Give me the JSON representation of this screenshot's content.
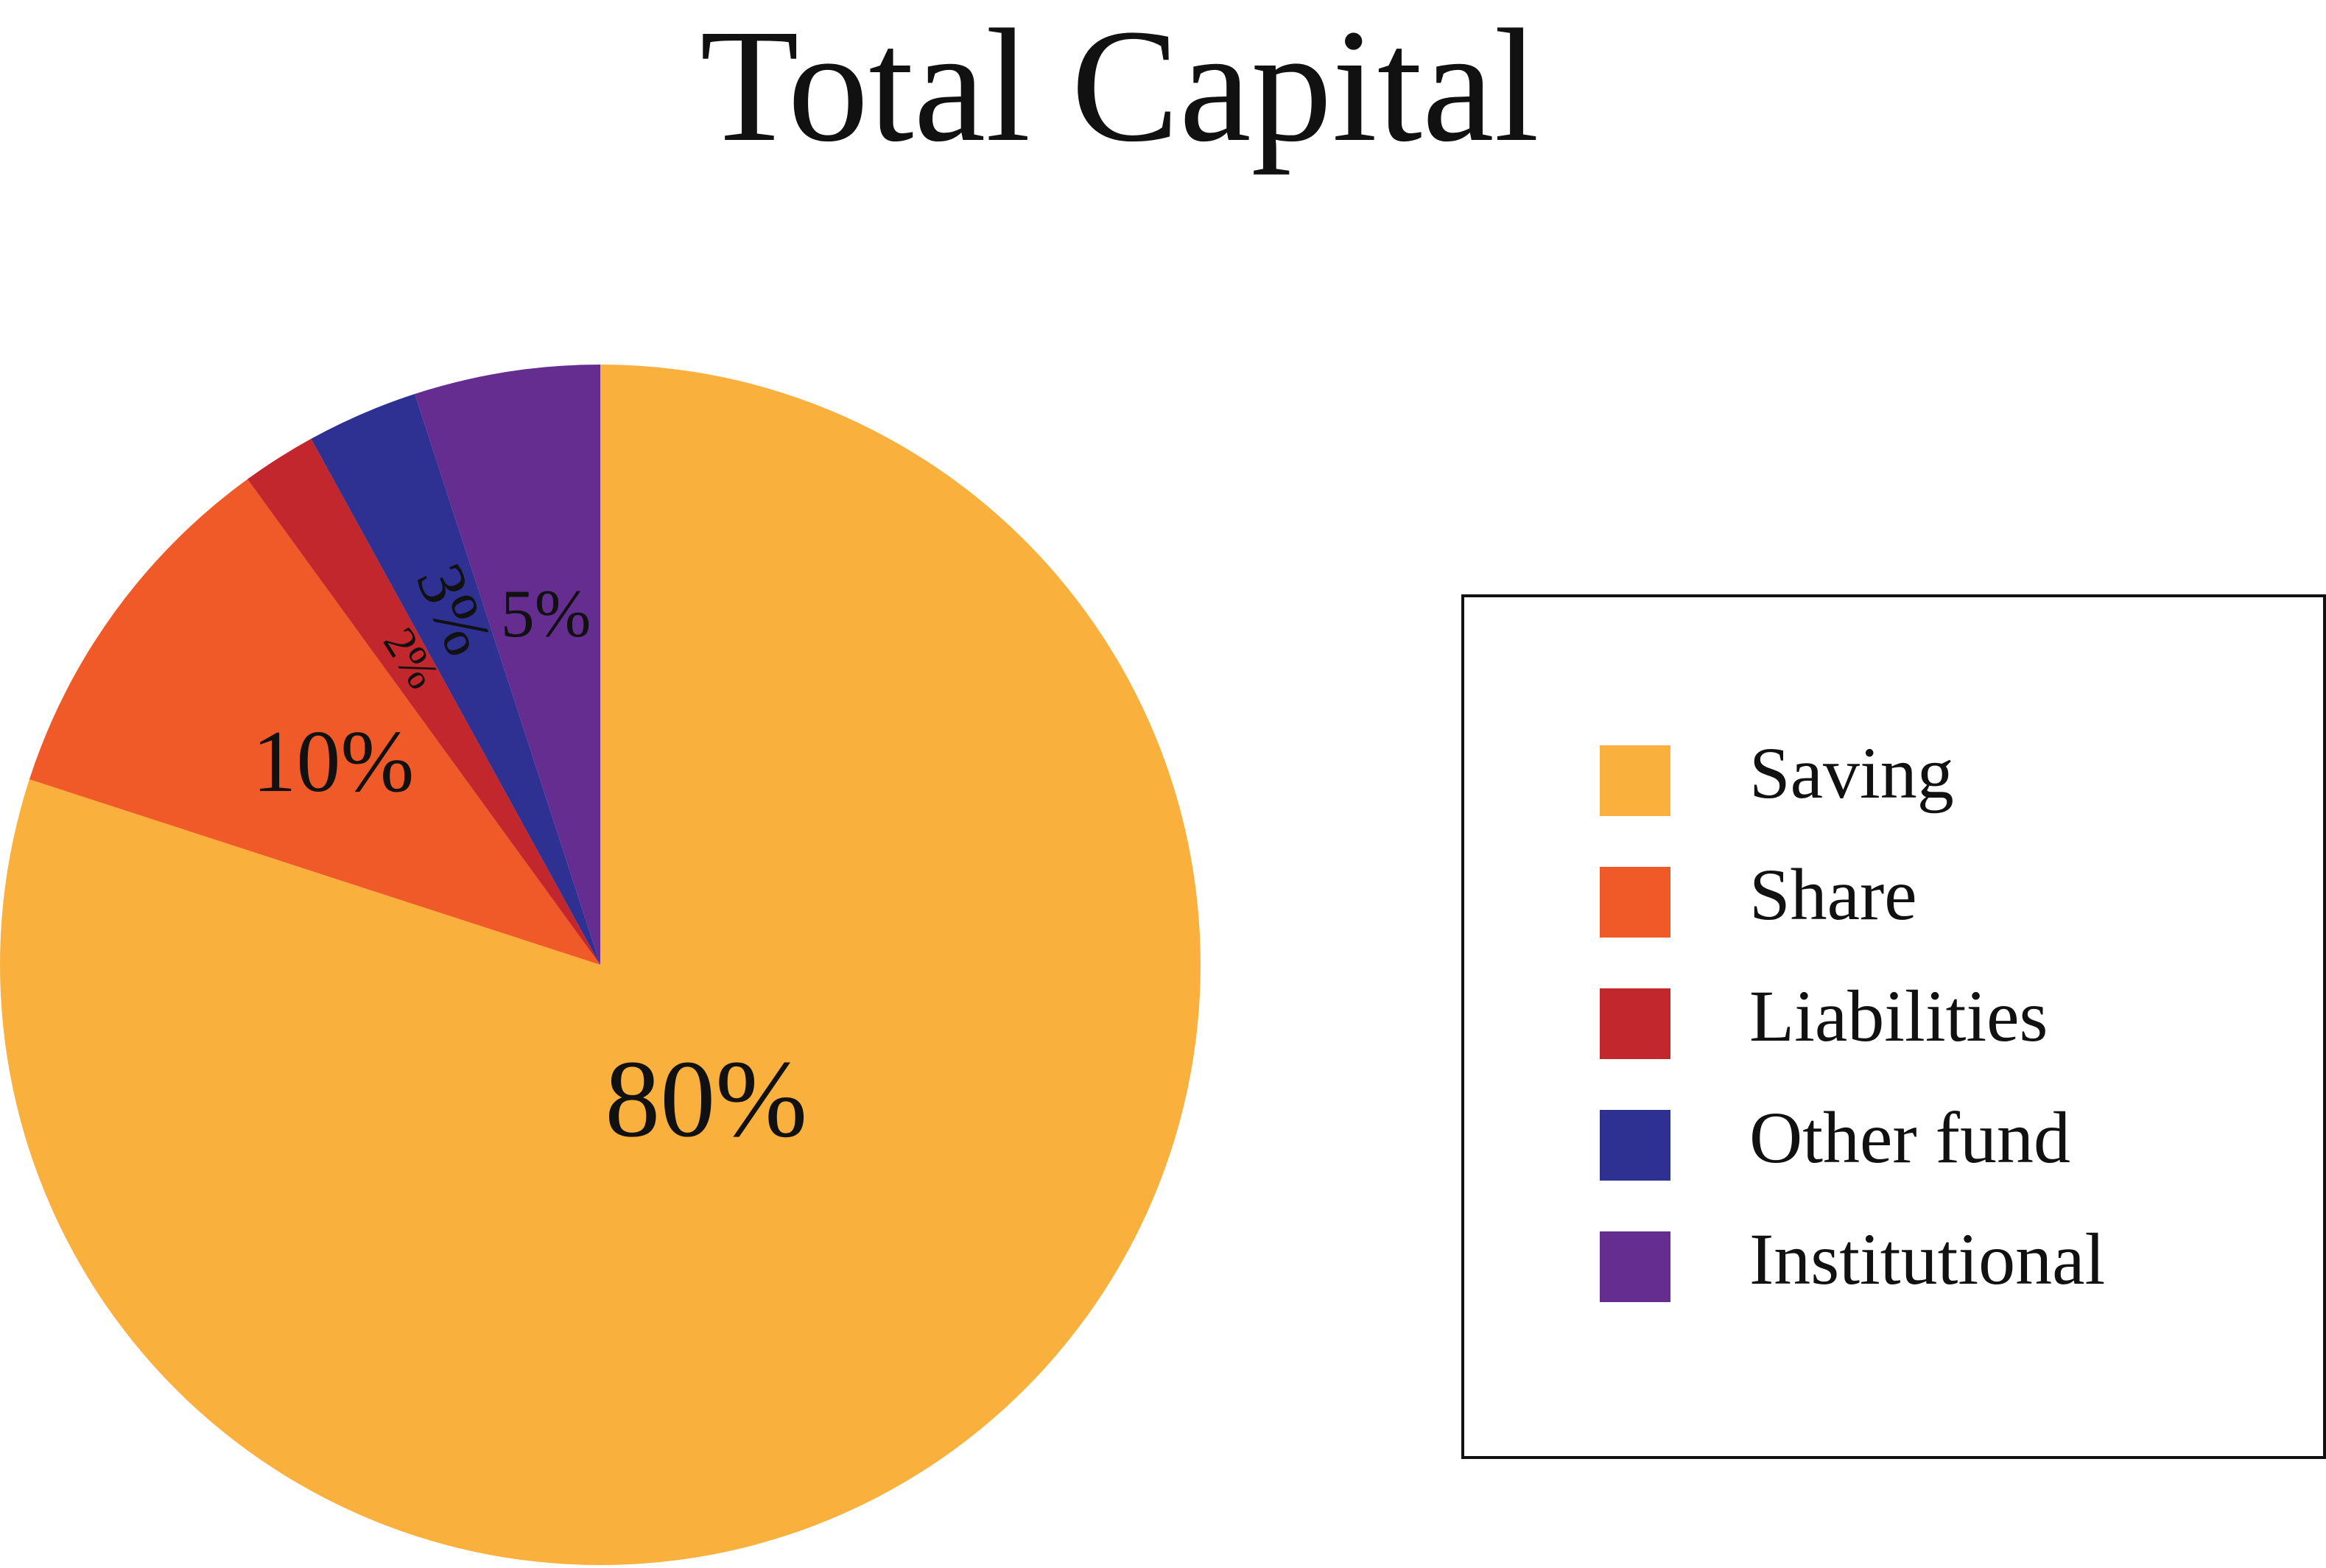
{
  "chart_data": {
    "type": "pie",
    "title": "Total Capital",
    "start_angle_deg": 0,
    "direction": "clockwise",
    "legend_position": "right",
    "slices": [
      {
        "label": "Saving",
        "value": 80,
        "display": "80%",
        "color": "#F9B03C"
      },
      {
        "label": "Share",
        "value": 10,
        "display": "10%",
        "color": "#F05A28"
      },
      {
        "label": "Liabilities",
        "value": 2,
        "display": "2%",
        "color": "#C1272D"
      },
      {
        "label": "Other fund",
        "value": 3,
        "display": "3%",
        "color": "#2E3192"
      },
      {
        "label": "Institutional",
        "value": 5,
        "display": "5%",
        "color": "#662D91"
      }
    ]
  }
}
